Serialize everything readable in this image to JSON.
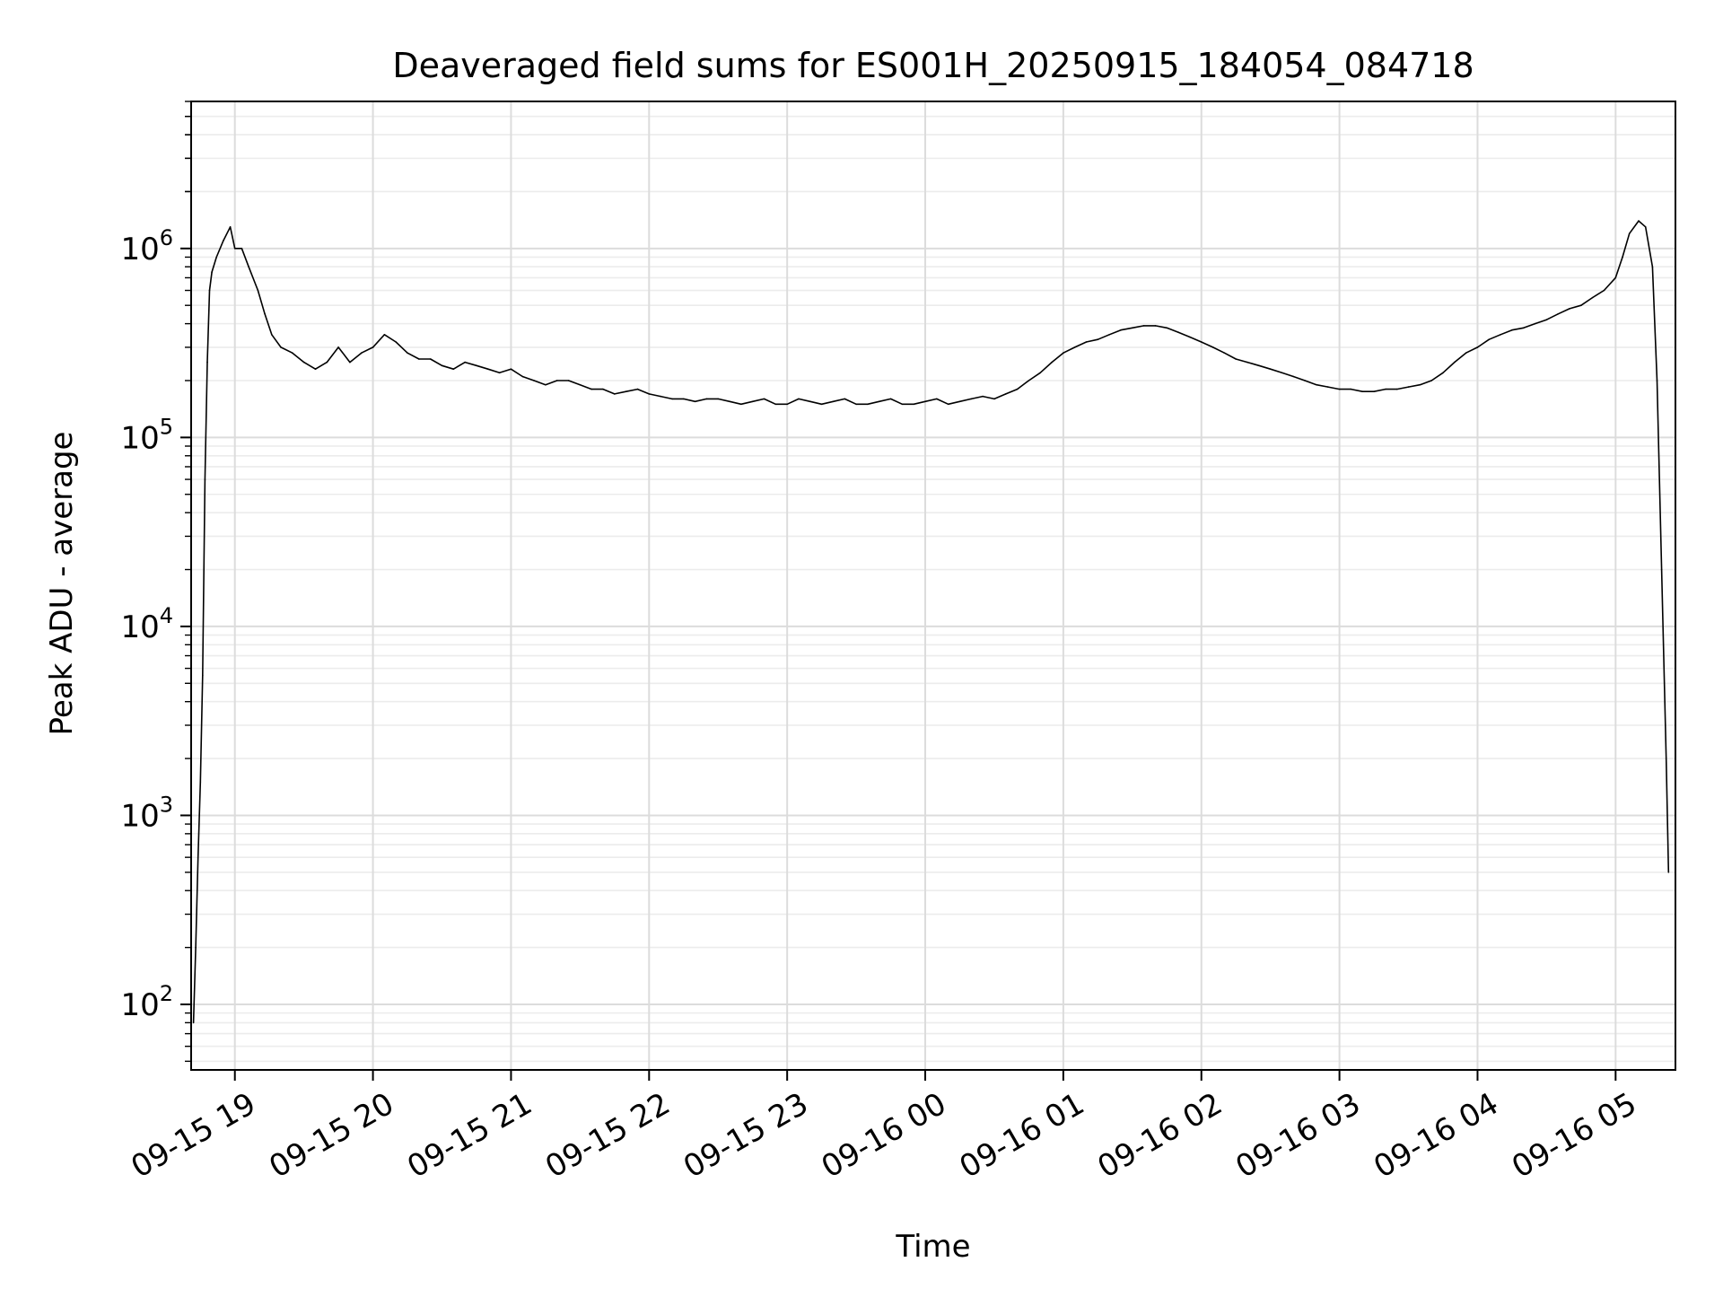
{
  "chart_data": {
    "type": "line",
    "title": "Deaveraged field sums for ES001H_20250915_184054_084718",
    "xlabel": "Time",
    "ylabel": "Peak ADU - average",
    "yscale": "log",
    "ylim": [
      45,
      6000000
    ],
    "xlim": [
      "09-15 18:41",
      "09-16 05:26"
    ],
    "grid": true,
    "legend": "none",
    "line_color": "#000000",
    "x_tick_labels": [
      "09-15 19",
      "09-15 20",
      "09-15 21",
      "09-15 22",
      "09-15 23",
      "09-16 00",
      "09-16 01",
      "09-16 02",
      "09-16 03",
      "09-16 04",
      "09-16 05"
    ],
    "y_tick_labels": [
      {
        "base": "10",
        "exp": "2",
        "value": 100
      },
      {
        "base": "10",
        "exp": "3",
        "value": 1000
      },
      {
        "base": "10",
        "exp": "4",
        "value": 10000
      },
      {
        "base": "10",
        "exp": "5",
        "value": 100000
      },
      {
        "base": "10",
        "exp": "6",
        "value": 1000000
      }
    ],
    "series": [
      {
        "x": [
          "09-15 18:42",
          "09-15 18:43",
          "09-15 18:44",
          "09-15 18:45",
          "09-15 18:46",
          "09-15 18:47",
          "09-15 18:48",
          "09-15 18:49",
          "09-15 18:50",
          "09-15 18:52",
          "09-15 18:55",
          "09-15 18:58",
          "09-15 19:00",
          "09-15 19:03",
          "09-15 19:06",
          "09-15 19:10",
          "09-15 19:13",
          "09-15 19:16",
          "09-15 19:20",
          "09-15 19:25",
          "09-15 19:30",
          "09-15 19:35",
          "09-15 19:40",
          "09-15 19:45",
          "09-15 19:50",
          "09-15 19:55",
          "09-15 20:00",
          "09-15 20:05",
          "09-15 20:10",
          "09-15 20:15",
          "09-15 20:20",
          "09-15 20:25",
          "09-15 20:30",
          "09-15 20:35",
          "09-15 20:40",
          "09-15 20:45",
          "09-15 20:50",
          "09-15 20:55",
          "09-15 21:00",
          "09-15 21:05",
          "09-15 21:10",
          "09-15 21:15",
          "09-15 21:20",
          "09-15 21:25",
          "09-15 21:30",
          "09-15 21:35",
          "09-15 21:40",
          "09-15 21:45",
          "09-15 21:50",
          "09-15 21:55",
          "09-15 22:00",
          "09-15 22:05",
          "09-15 22:10",
          "09-15 22:15",
          "09-15 22:20",
          "09-15 22:25",
          "09-15 22:30",
          "09-15 22:35",
          "09-15 22:40",
          "09-15 22:45",
          "09-15 22:50",
          "09-15 22:55",
          "09-15 23:00",
          "09-15 23:05",
          "09-15 23:10",
          "09-15 23:15",
          "09-15 23:20",
          "09-15 23:25",
          "09-15 23:30",
          "09-15 23:35",
          "09-15 23:40",
          "09-15 23:45",
          "09-15 23:50",
          "09-15 23:55",
          "09-16 00:00",
          "09-16 00:05",
          "09-16 00:10",
          "09-16 00:15",
          "09-16 00:20",
          "09-16 00:25",
          "09-16 00:30",
          "09-16 00:35",
          "09-16 00:40",
          "09-16 00:45",
          "09-16 00:50",
          "09-16 00:55",
          "09-16 01:00",
          "09-16 01:05",
          "09-16 01:10",
          "09-16 01:15",
          "09-16 01:20",
          "09-16 01:25",
          "09-16 01:30",
          "09-16 01:35",
          "09-16 01:40",
          "09-16 01:45",
          "09-16 01:50",
          "09-16 01:55",
          "09-16 02:00",
          "09-16 02:05",
          "09-16 02:10",
          "09-16 02:15",
          "09-16 02:20",
          "09-16 02:25",
          "09-16 02:30",
          "09-16 02:35",
          "09-16 02:40",
          "09-16 02:45",
          "09-16 02:50",
          "09-16 02:55",
          "09-16 03:00",
          "09-16 03:05",
          "09-16 03:10",
          "09-16 03:15",
          "09-16 03:20",
          "09-16 03:25",
          "09-16 03:30",
          "09-16 03:35",
          "09-16 03:40",
          "09-16 03:45",
          "09-16 03:50",
          "09-16 03:55",
          "09-16 04:00",
          "09-16 04:05",
          "09-16 04:10",
          "09-16 04:15",
          "09-16 04:20",
          "09-16 04:25",
          "09-16 04:30",
          "09-16 04:35",
          "09-16 04:40",
          "09-16 04:45",
          "09-16 04:50",
          "09-16 04:55",
          "09-16 05:00",
          "09-16 05:03",
          "09-16 05:06",
          "09-16 05:10",
          "09-16 05:13",
          "09-16 05:16",
          "09-16 05:18",
          "09-16 05:20",
          "09-16 05:22",
          "09-16 05:23"
        ],
        "y": [
          80,
          200,
          600,
          1500,
          5500,
          60000,
          250000,
          600000,
          750000,
          900000,
          1100000,
          1300000,
          1000000,
          1000000,
          800000,
          600000,
          450000,
          350000,
          300000,
          280000,
          250000,
          230000,
          250000,
          300000,
          250000,
          280000,
          300000,
          350000,
          320000,
          280000,
          260000,
          260000,
          240000,
          230000,
          250000,
          240000,
          230000,
          220000,
          230000,
          210000,
          200000,
          190000,
          200000,
          200000,
          190000,
          180000,
          180000,
          170000,
          175000,
          180000,
          170000,
          165000,
          160000,
          160000,
          155000,
          160000,
          160000,
          155000,
          150000,
          155000,
          160000,
          150000,
          150000,
          160000,
          155000,
          150000,
          155000,
          160000,
          150000,
          150000,
          155000,
          160000,
          150000,
          150000,
          155000,
          160000,
          150000,
          155000,
          160000,
          165000,
          160000,
          170000,
          180000,
          200000,
          220000,
          250000,
          280000,
          300000,
          320000,
          330000,
          350000,
          370000,
          380000,
          390000,
          390000,
          380000,
          360000,
          340000,
          320000,
          300000,
          280000,
          260000,
          250000,
          240000,
          230000,
          220000,
          210000,
          200000,
          190000,
          185000,
          180000,
          180000,
          175000,
          175000,
          180000,
          180000,
          185000,
          190000,
          200000,
          220000,
          250000,
          280000,
          300000,
          330000,
          350000,
          370000,
          380000,
          400000,
          420000,
          450000,
          480000,
          500000,
          550000,
          600000,
          700000,
          900000,
          1200000,
          1400000,
          1300000,
          800000,
          200000,
          20000,
          2000,
          500
        ]
      }
    ]
  }
}
